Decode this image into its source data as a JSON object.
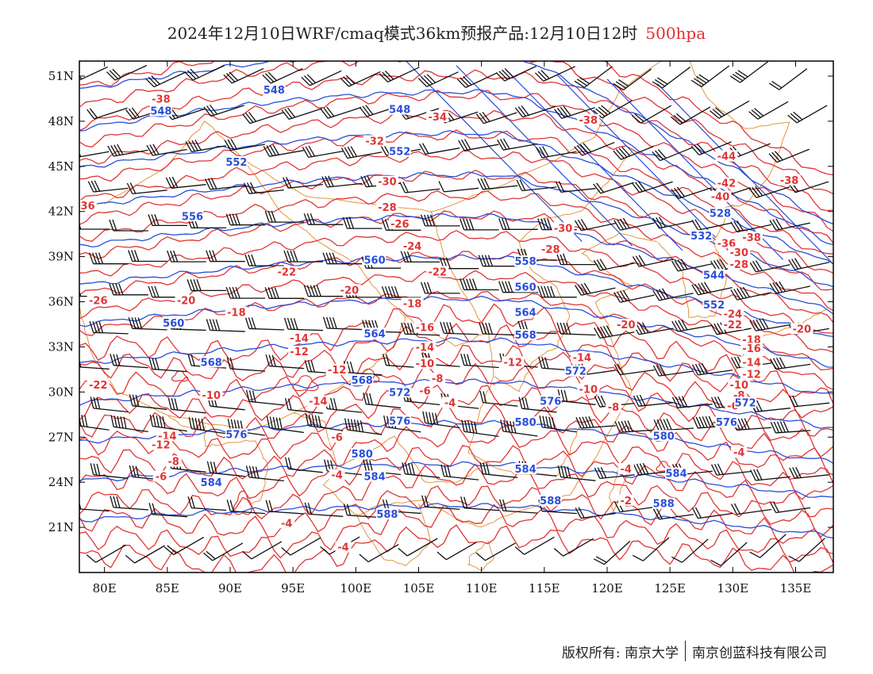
{
  "title": {
    "main": "2024年12月10日WRF/cmaq模式36km预报产品:12月10日12时",
    "level": "500hpa"
  },
  "colors": {
    "height": "#2a4fd8",
    "temperature": "#e03535",
    "border": "#e08a2a",
    "wind": "#111111",
    "frame": "#000000"
  },
  "axes": {
    "lon_range": [
      78,
      138
    ],
    "lat_range": [
      18,
      52
    ],
    "lon_ticks": [
      80,
      85,
      90,
      95,
      100,
      105,
      110,
      115,
      120,
      125,
      130,
      135
    ],
    "lat_ticks": [
      21,
      24,
      27,
      30,
      33,
      36,
      39,
      42,
      45,
      48,
      51
    ],
    "lon_labels": [
      "80E",
      "85E",
      "90E",
      "95E",
      "100E",
      "105E",
      "110E",
      "115E",
      "120E",
      "125E",
      "130E",
      "135E"
    ],
    "lat_labels": [
      "21N",
      "24N",
      "27N",
      "30N",
      "33N",
      "36N",
      "39N",
      "42N",
      "45N",
      "48N",
      "51N"
    ]
  },
  "height_labels": [
    {
      "text": "548",
      "lon": 93.5,
      "lat": 50.0
    },
    {
      "text": "548",
      "lon": 84.5,
      "lat": 48.6
    },
    {
      "text": "548",
      "lon": 103.5,
      "lat": 48.7
    },
    {
      "text": "552",
      "lon": 90.5,
      "lat": 45.2
    },
    {
      "text": "552",
      "lon": 103.5,
      "lat": 45.9
    },
    {
      "text": "556",
      "lon": 87.0,
      "lat": 41.6
    },
    {
      "text": "560",
      "lon": 101.5,
      "lat": 38.7
    },
    {
      "text": "560",
      "lon": 85.5,
      "lat": 34.5
    },
    {
      "text": "564",
      "lon": 101.5,
      "lat": 33.8
    },
    {
      "text": "568",
      "lon": 88.5,
      "lat": 31.9
    },
    {
      "text": "568",
      "lon": 100.5,
      "lat": 30.7
    },
    {
      "text": "572",
      "lon": 103.5,
      "lat": 29.9
    },
    {
      "text": "576",
      "lon": 90.5,
      "lat": 27.1
    },
    {
      "text": "576",
      "lon": 103.5,
      "lat": 28.0
    },
    {
      "text": "580",
      "lon": 100.5,
      "lat": 25.8
    },
    {
      "text": "584",
      "lon": 88.5,
      "lat": 23.9
    },
    {
      "text": "584",
      "lon": 101.5,
      "lat": 24.3
    },
    {
      "text": "588",
      "lon": 102.5,
      "lat": 21.8
    },
    {
      "text": "558",
      "lon": 113.5,
      "lat": 38.6
    },
    {
      "text": "560",
      "lon": 113.5,
      "lat": 36.9
    },
    {
      "text": "564",
      "lon": 113.5,
      "lat": 35.2
    },
    {
      "text": "568",
      "lon": 113.5,
      "lat": 33.7
    },
    {
      "text": "572",
      "lon": 117.5,
      "lat": 31.3
    },
    {
      "text": "576",
      "lon": 115.5,
      "lat": 29.3
    },
    {
      "text": "580",
      "lon": 113.5,
      "lat": 27.9
    },
    {
      "text": "584",
      "lon": 113.5,
      "lat": 24.8
    },
    {
      "text": "588",
      "lon": 115.5,
      "lat": 22.7
    },
    {
      "text": "580",
      "lon": 124.5,
      "lat": 27.0
    },
    {
      "text": "584",
      "lon": 125.5,
      "lat": 24.5
    },
    {
      "text": "588",
      "lon": 124.5,
      "lat": 22.5
    },
    {
      "text": "576",
      "lon": 129.5,
      "lat": 27.9
    },
    {
      "text": "528",
      "lon": 129.0,
      "lat": 41.8
    },
    {
      "text": "532",
      "lon": 127.5,
      "lat": 40.3
    },
    {
      "text": "544",
      "lon": 128.5,
      "lat": 37.7
    },
    {
      "text": "552",
      "lon": 128.5,
      "lat": 35.7
    },
    {
      "text": "572",
      "lon": 131.0,
      "lat": 29.2
    }
  ],
  "temperature_labels": [
    {
      "text": "-38",
      "lon": 84.5,
      "lat": 49.4
    },
    {
      "text": "-36",
      "lon": 78.5,
      "lat": 42.3
    },
    {
      "text": "-34",
      "lon": 106.5,
      "lat": 48.2
    },
    {
      "text": "-32",
      "lon": 101.5,
      "lat": 46.6
    },
    {
      "text": "-30",
      "lon": 102.5,
      "lat": 43.9
    },
    {
      "text": "-28",
      "lon": 102.5,
      "lat": 42.2
    },
    {
      "text": "-26",
      "lon": 103.5,
      "lat": 41.1
    },
    {
      "text": "-24",
      "lon": 104.5,
      "lat": 39.6
    },
    {
      "text": "-22",
      "lon": 94.5,
      "lat": 37.9
    },
    {
      "text": "-22",
      "lon": 106.5,
      "lat": 37.9
    },
    {
      "text": "-20",
      "lon": 99.5,
      "lat": 36.7
    },
    {
      "text": "-20",
      "lon": 86.5,
      "lat": 36.0
    },
    {
      "text": "-26",
      "lon": 79.5,
      "lat": 36.0
    },
    {
      "text": "-18",
      "lon": 90.5,
      "lat": 35.2
    },
    {
      "text": "-18",
      "lon": 104.5,
      "lat": 35.8
    },
    {
      "text": "-16",
      "lon": 105.5,
      "lat": 34.2
    },
    {
      "text": "-14",
      "lon": 95.5,
      "lat": 33.5
    },
    {
      "text": "-14",
      "lon": 105.5,
      "lat": 32.9
    },
    {
      "text": "-12",
      "lon": 95.5,
      "lat": 32.6
    },
    {
      "text": "-12",
      "lon": 98.5,
      "lat": 31.4
    },
    {
      "text": "-10",
      "lon": 105.5,
      "lat": 31.8
    },
    {
      "text": "-10",
      "lon": 88.5,
      "lat": 29.7
    },
    {
      "text": "-14",
      "lon": 97.0,
      "lat": 29.3
    },
    {
      "text": "-8",
      "lon": 106.5,
      "lat": 30.8
    },
    {
      "text": "-6",
      "lon": 105.5,
      "lat": 30.0
    },
    {
      "text": "-4",
      "lon": 107.5,
      "lat": 29.2
    },
    {
      "text": "-6",
      "lon": 98.5,
      "lat": 26.9
    },
    {
      "text": "-14",
      "lon": 85.0,
      "lat": 27.0
    },
    {
      "text": "-12",
      "lon": 84.5,
      "lat": 26.4
    },
    {
      "text": "-8",
      "lon": 85.5,
      "lat": 25.3
    },
    {
      "text": "-6",
      "lon": 84.5,
      "lat": 24.3
    },
    {
      "text": "-4",
      "lon": 98.5,
      "lat": 24.4
    },
    {
      "text": "-4",
      "lon": 94.5,
      "lat": 21.2
    },
    {
      "text": "-4",
      "lon": 99.0,
      "lat": 19.6
    },
    {
      "text": "-22",
      "lon": 79.5,
      "lat": 30.4
    },
    {
      "text": "-38",
      "lon": 118.5,
      "lat": 48.0
    },
    {
      "text": "-30",
      "lon": 116.5,
      "lat": 40.8
    },
    {
      "text": "-28",
      "lon": 115.5,
      "lat": 39.4
    },
    {
      "text": "-20",
      "lon": 121.5,
      "lat": 34.4
    },
    {
      "text": "-14",
      "lon": 118.0,
      "lat": 32.2
    },
    {
      "text": "-12",
      "lon": 112.5,
      "lat": 31.9
    },
    {
      "text": "-10",
      "lon": 118.5,
      "lat": 30.1
    },
    {
      "text": "-8",
      "lon": 120.5,
      "lat": 28.9
    },
    {
      "text": "-4",
      "lon": 121.5,
      "lat": 24.8
    },
    {
      "text": "-2",
      "lon": 121.5,
      "lat": 22.7
    },
    {
      "text": "-44",
      "lon": 129.5,
      "lat": 45.6
    },
    {
      "text": "-42",
      "lon": 129.5,
      "lat": 43.8
    },
    {
      "text": "-40",
      "lon": 129.0,
      "lat": 42.9
    },
    {
      "text": "-38",
      "lon": 131.5,
      "lat": 40.2
    },
    {
      "text": "-38",
      "lon": 134.5,
      "lat": 44.0
    },
    {
      "text": "-36",
      "lon": 129.5,
      "lat": 39.8
    },
    {
      "text": "-30",
      "lon": 130.5,
      "lat": 39.2
    },
    {
      "text": "-28",
      "lon": 130.5,
      "lat": 38.4
    },
    {
      "text": "-24",
      "lon": 130.0,
      "lat": 35.1
    },
    {
      "text": "-22",
      "lon": 130.0,
      "lat": 34.4
    },
    {
      "text": "-20",
      "lon": 135.5,
      "lat": 34.1
    },
    {
      "text": "-18",
      "lon": 131.5,
      "lat": 33.4
    },
    {
      "text": "-16",
      "lon": 131.5,
      "lat": 32.8
    },
    {
      "text": "-14",
      "lon": 131.5,
      "lat": 31.9
    },
    {
      "text": "-12",
      "lon": 131.5,
      "lat": 31.1
    },
    {
      "text": "-10",
      "lon": 130.5,
      "lat": 30.4
    },
    {
      "text": "-8",
      "lon": 130.5,
      "lat": 29.7
    },
    {
      "text": "-6",
      "lon": 130.0,
      "lat": 29.0
    },
    {
      "text": "-4",
      "lon": 130.5,
      "lat": 25.9
    }
  ],
  "footer": {
    "left": "版权所有: 南京大学",
    "right": "南京创蓝科技有限公司"
  }
}
